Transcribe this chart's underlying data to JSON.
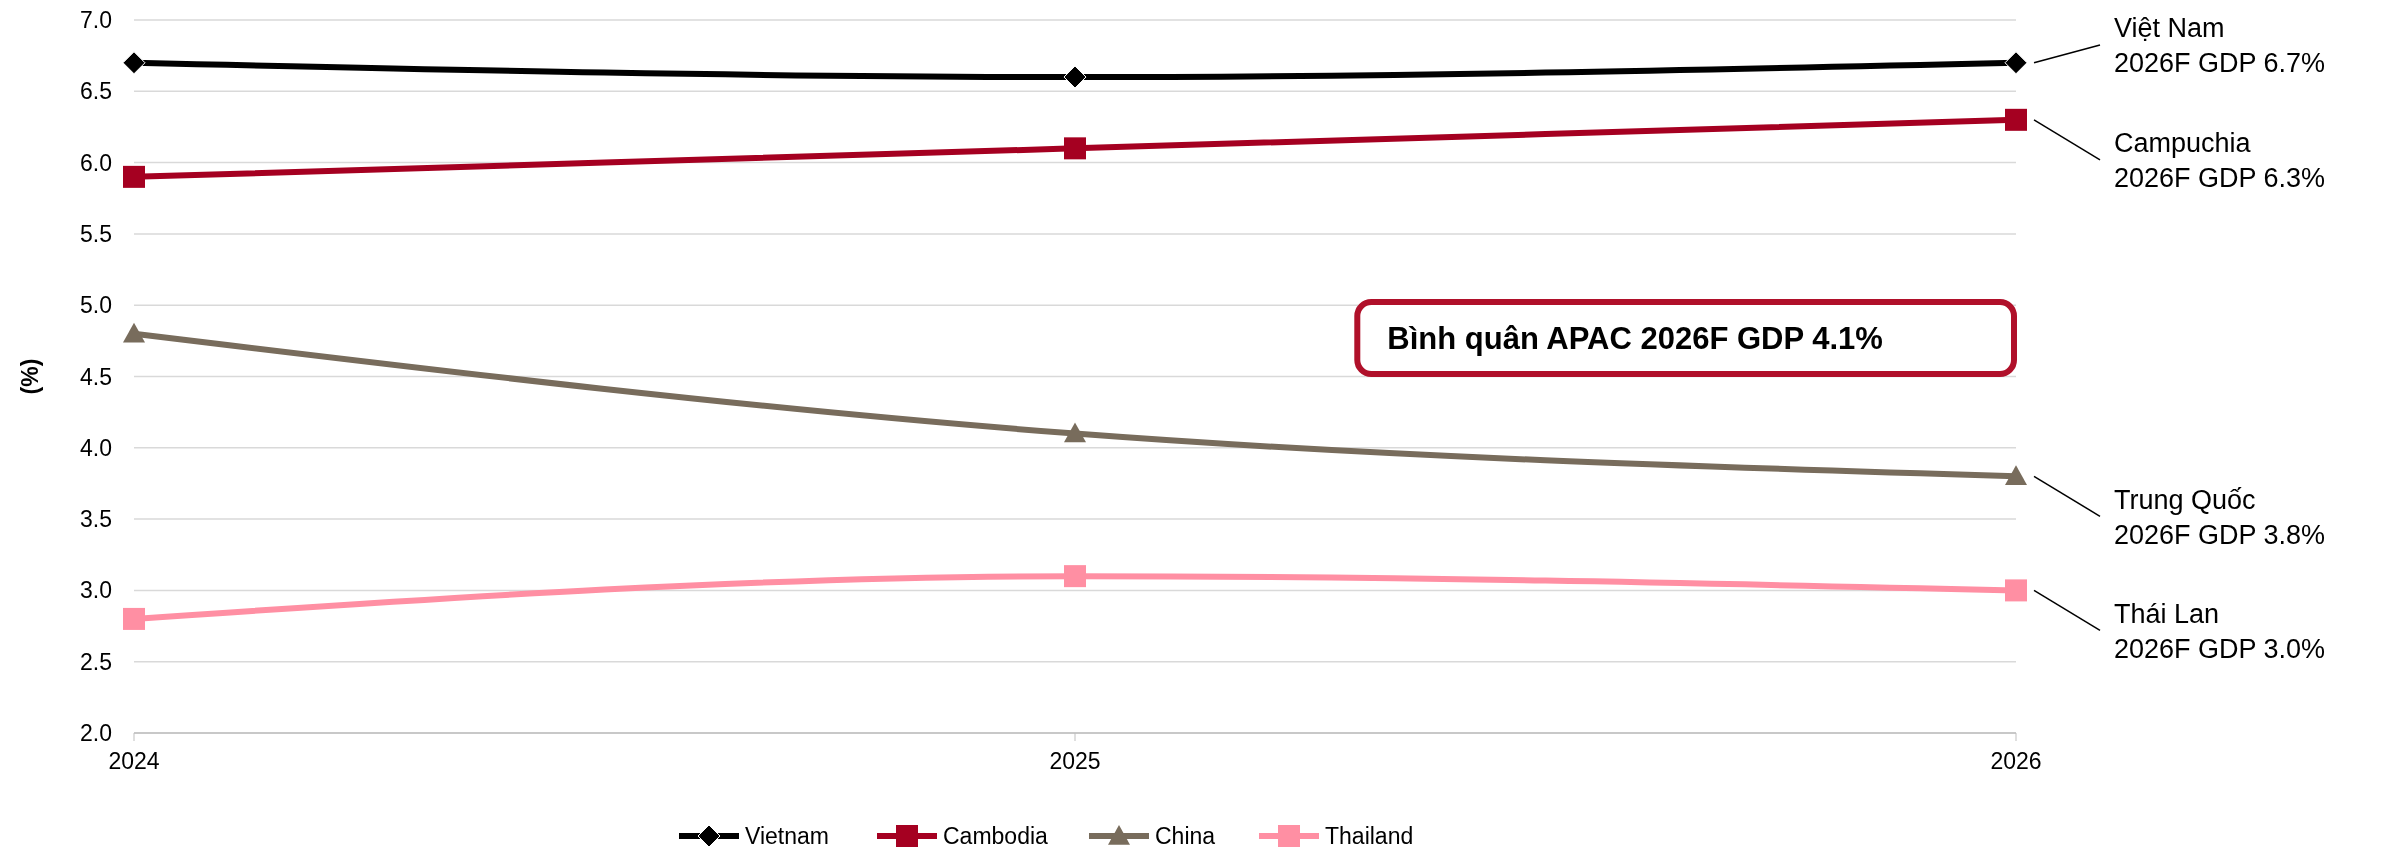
{
  "chart_data": {
    "type": "line",
    "ylabel": "(%)",
    "x": [
      2024,
      2025,
      2026
    ],
    "xlim": [
      2024,
      2026
    ],
    "xticks": [
      2024,
      2025,
      2026
    ],
    "ylim": [
      2,
      7
    ],
    "yticks": [
      {
        "value": 2,
        "label": "2.0"
      },
      {
        "value": 2.5,
        "label": "2.5"
      },
      {
        "value": 3,
        "label": "3.0"
      },
      {
        "value": 3.5,
        "label": "3.5"
      },
      {
        "value": 4,
        "label": "4.0"
      },
      {
        "value": 4.5,
        "label": "4.5"
      },
      {
        "value": 5,
        "label": "5.0"
      },
      {
        "value": 5.5,
        "label": "5.5"
      },
      {
        "value": 6,
        "label": "6.0"
      },
      {
        "value": 6.5,
        "label": "6.5"
      },
      {
        "value": 7,
        "label": "7.0"
      }
    ],
    "grid": "y",
    "legend": "bottom",
    "series": [
      {
        "name": "Vietnam",
        "color": "#000000",
        "marker": "diamond",
        "values": [
          6.7,
          6.6,
          6.7
        ]
      },
      {
        "name": "Cambodia",
        "color": "#a50021",
        "marker": "square",
        "values": [
          5.9,
          6.1,
          6.3
        ]
      },
      {
        "name": "China",
        "color": "#786c5c",
        "marker": "triangle",
        "values": [
          4.8,
          4.1,
          3.8
        ]
      },
      {
        "name": "Thailand",
        "color": "#ff8fa3",
        "marker": "square",
        "values": [
          2.8,
          3.1,
          3.0
        ]
      }
    ],
    "annotations": [
      "Việt Nam\n2026F GDP 6.7%",
      "Campuchia\n2026F GDP 6.3%",
      "Trung Quốc\n2026F GDP 3.8%",
      "Thái Lan\n2026F GDP 3.0%",
      "Bình quân APAC 2026F GDP 4.1%"
    ]
  }
}
